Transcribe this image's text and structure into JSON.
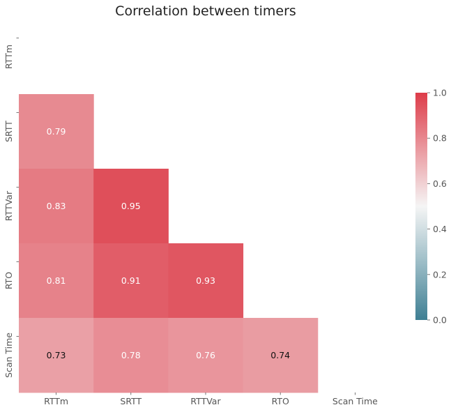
{
  "chart_data": {
    "type": "heatmap",
    "title": "Correlation between timers",
    "variables": [
      "RTTm",
      "SRTT",
      "RTTVar",
      "RTO",
      "Scan Time"
    ],
    "mask": "upper-triangle-including-diagonal",
    "cells": [
      {
        "row": "SRTT",
        "col": "RTTm",
        "value": 0.79,
        "label": "0.79"
      },
      {
        "row": "RTTVar",
        "col": "RTTm",
        "value": 0.83,
        "label": "0.83"
      },
      {
        "row": "RTTVar",
        "col": "SRTT",
        "value": 0.95,
        "label": "0.95"
      },
      {
        "row": "RTO",
        "col": "RTTm",
        "value": 0.81,
        "label": "0.81"
      },
      {
        "row": "RTO",
        "col": "SRTT",
        "value": 0.91,
        "label": "0.91"
      },
      {
        "row": "RTO",
        "col": "RTTVar",
        "value": 0.93,
        "label": "0.93"
      },
      {
        "row": "Scan Time",
        "col": "RTTm",
        "value": 0.73,
        "label": "0.73"
      },
      {
        "row": "Scan Time",
        "col": "SRTT",
        "value": 0.78,
        "label": "0.78"
      },
      {
        "row": "Scan Time",
        "col": "RTTVar",
        "value": 0.76,
        "label": "0.76"
      },
      {
        "row": "Scan Time",
        "col": "RTO",
        "value": 0.74,
        "label": "0.74"
      }
    ],
    "colorbar": {
      "range": [
        0.0,
        1.0
      ],
      "ticks": [
        "0.0",
        "0.2",
        "0.4",
        "0.6",
        "0.8",
        "1.0"
      ],
      "colors": [
        "#3e7f93",
        "#f5f5f5",
        "#dd3c49"
      ]
    },
    "colors": {
      "title": "#222222",
      "tick_text": "#555555",
      "dark_text": "#111111",
      "light_text": "#ffffff"
    }
  }
}
